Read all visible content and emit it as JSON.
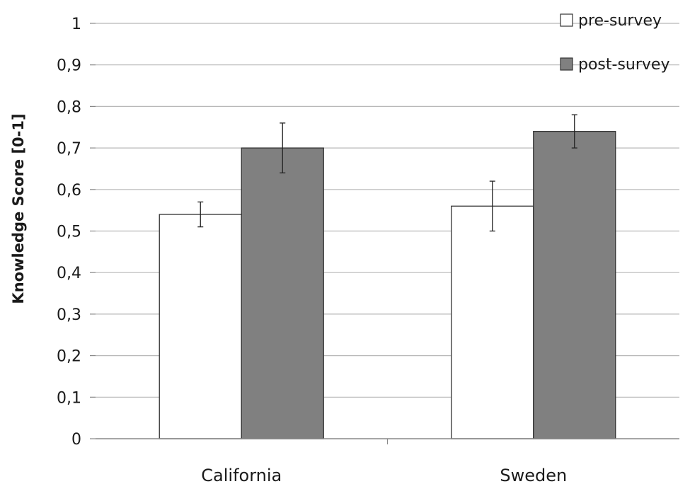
{
  "chart_data": {
    "type": "bar",
    "categories": [
      "California",
      "Sweden"
    ],
    "series": [
      {
        "name": "pre-survey",
        "values": [
          0.54,
          0.56
        ],
        "error_low": [
          0.51,
          0.5
        ],
        "error_high": [
          0.57,
          0.62
        ],
        "color": "#ffffff"
      },
      {
        "name": "post-survey",
        "values": [
          0.7,
          0.74
        ],
        "error_low": [
          0.64,
          0.7
        ],
        "error_high": [
          0.76,
          0.78
        ],
        "color": "#808080"
      }
    ],
    "xlabel": "",
    "ylabel": "Knowledge Score [0-1]",
    "ylim": [
      0,
      1
    ],
    "yticks": [
      "0",
      "0,1",
      "0,2",
      "0,3",
      "0,4",
      "0,5",
      "0,6",
      "0,7",
      "0,8",
      "0,9",
      "1"
    ],
    "grid": true,
    "legend_position": "top-right"
  }
}
